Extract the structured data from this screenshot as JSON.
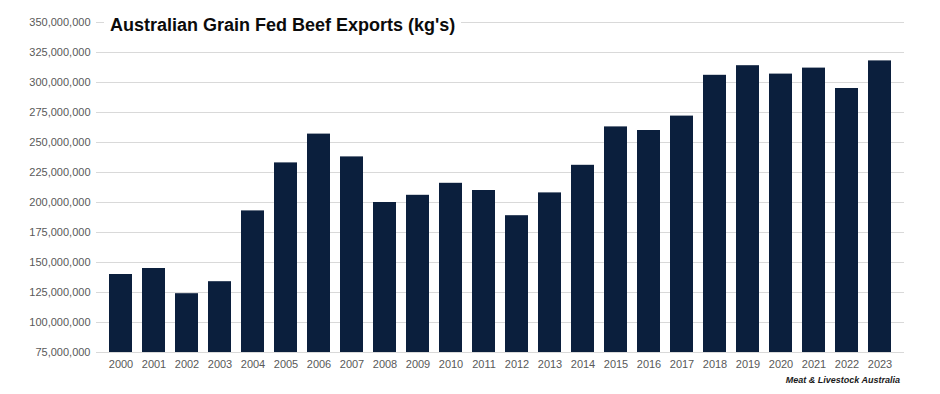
{
  "chart_data": {
    "type": "bar",
    "title": "Australian Grain Fed Beef Exports (kg's)",
    "caption": "Meat & Livestock Australia",
    "categories": [
      "2000",
      "2001",
      "2002",
      "2003",
      "2004",
      "2005",
      "2006",
      "2007",
      "2008",
      "2009",
      "2010",
      "2011",
      "2012",
      "2013",
      "2014",
      "2015",
      "2016",
      "2017",
      "2018",
      "2019",
      "2020",
      "2021",
      "2022",
      "2023"
    ],
    "values": [
      140000000,
      145000000,
      124000000,
      134000000,
      193000000,
      233000000,
      257000000,
      238000000,
      200000000,
      206000000,
      216000000,
      210000000,
      189000000,
      208000000,
      231000000,
      263000000,
      260000000,
      272000000,
      306000000,
      314000000,
      307000000,
      312000000,
      295000000,
      318000000
    ],
    "color": "#0b1f3d",
    "ylim": [
      75000000,
      350000000
    ],
    "yticks": [
      {
        "value": 75000000,
        "label": "75,000,000"
      },
      {
        "value": 100000000,
        "label": "100,000,000"
      },
      {
        "value": 125000000,
        "label": "125,000,000"
      },
      {
        "value": 150000000,
        "label": "150,000,000"
      },
      {
        "value": 175000000,
        "label": "175,000,000"
      },
      {
        "value": 200000000,
        "label": "200,000,000"
      },
      {
        "value": 225000000,
        "label": "225,000,000"
      },
      {
        "value": 250000000,
        "label": "250,000,000"
      },
      {
        "value": 275000000,
        "label": "275,000,000"
      },
      {
        "value": 300000000,
        "label": "300,000,000"
      },
      {
        "value": 325000000,
        "label": "325,000,000"
      },
      {
        "value": 350000000,
        "label": "350,000,000"
      }
    ],
    "grid": true
  }
}
